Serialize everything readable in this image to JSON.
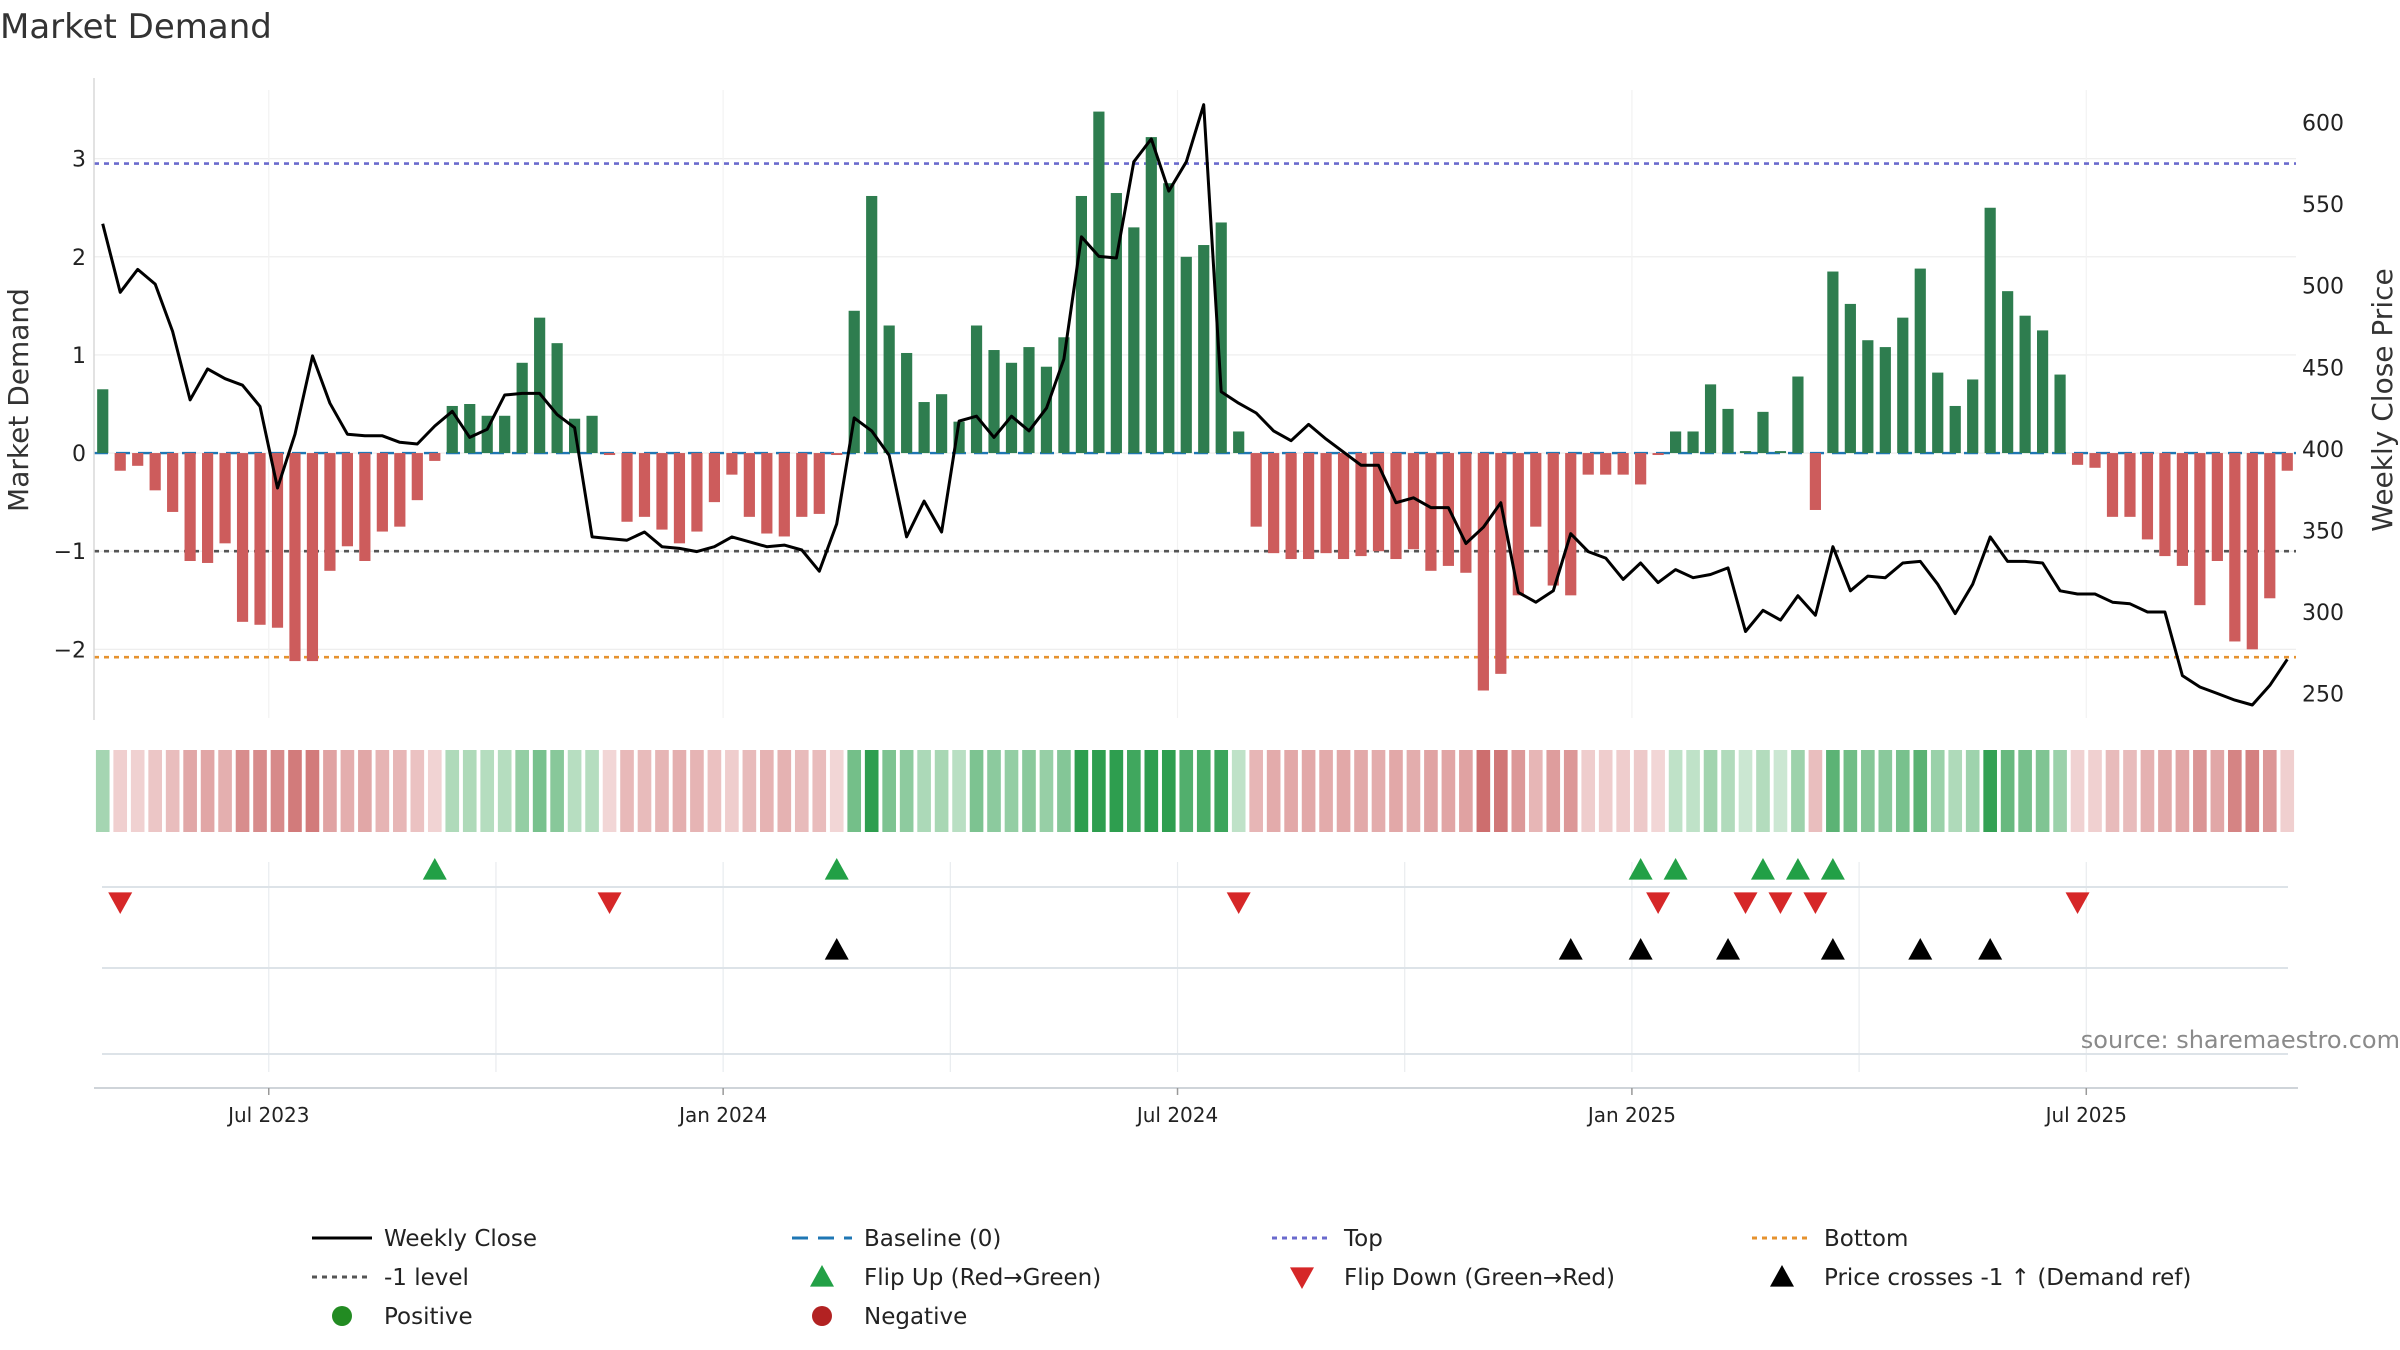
{
  "chart_data": {
    "type": "bar+line",
    "title": "Market Demand",
    "ylabel_left": "Market Demand",
    "ylabel_right": "Weekly Close Price",
    "ylim_left": [
      -2.7,
      3.7
    ],
    "ylim_right": [
      235,
      620
    ],
    "yticks_left": [
      -2,
      -1,
      0,
      1,
      2,
      3
    ],
    "ytick_labels_left": [
      "−2",
      "−1",
      "0",
      "1",
      "2",
      "3"
    ],
    "yticks_right": [
      250,
      300,
      350,
      400,
      450,
      500,
      550,
      600
    ],
    "xticks": [
      {
        "week": 10,
        "label": "Jul 2023"
      },
      {
        "week": 36,
        "label": "Jan 2024"
      },
      {
        "week": 62,
        "label": "Jul 2024"
      },
      {
        "week": 88,
        "label": "Jan 2025"
      },
      {
        "week": 114,
        "label": "Jul 2025"
      }
    ],
    "reference_lines": {
      "top": 2.95,
      "minus_one": -1.0,
      "bottom": -2.08,
      "baseline": 0
    },
    "demand": [
      0.65,
      -0.18,
      -0.13,
      -0.38,
      -0.6,
      -1.1,
      -1.12,
      -0.92,
      -1.72,
      -1.75,
      -1.78,
      -2.12,
      -2.12,
      -1.2,
      -0.95,
      -1.1,
      -0.8,
      -0.75,
      -0.48,
      -0.08,
      0.48,
      0.5,
      0.38,
      0.38,
      0.92,
      1.38,
      1.12,
      0.35,
      0.38,
      -0.02,
      -0.7,
      -0.65,
      -0.78,
      -0.92,
      -0.8,
      -0.5,
      -0.22,
      -0.65,
      -0.82,
      -0.85,
      -0.65,
      -0.62,
      -0.02,
      1.45,
      2.62,
      1.3,
      1.02,
      0.52,
      0.6,
      0.32,
      1.3,
      1.05,
      0.92,
      1.08,
      0.88,
      1.18,
      2.62,
      3.48,
      2.65,
      2.3,
      3.22,
      2.75,
      2.0,
      2.12,
      2.35,
      0.22,
      -0.75,
      -1.02,
      -1.08,
      -1.08,
      -1.02,
      -1.08,
      -1.05,
      -1.0,
      -1.08,
      -0.98,
      -1.2,
      -1.15,
      -1.22,
      -2.42,
      -2.25,
      -1.45,
      -0.75,
      -1.35,
      -1.45,
      -0.22,
      -0.22,
      -0.22,
      -0.32,
      -0.02,
      0.22,
      0.22,
      0.7,
      0.45,
      0.02,
      0.42,
      0.02,
      0.78,
      -0.58,
      1.85,
      1.52,
      1.15,
      1.08,
      1.38,
      1.88,
      0.82,
      0.48,
      0.75,
      2.5,
      1.65,
      1.4,
      1.25,
      0.8,
      -0.12,
      -0.15,
      -0.65,
      -0.65,
      -0.88,
      -1.05,
      -1.15,
      -1.55,
      -1.1,
      -1.92,
      -2.0,
      -1.48,
      -0.18
    ],
    "weekly_close": [
      538,
      496,
      510,
      501,
      472,
      430,
      449,
      443,
      439,
      426,
      376,
      409,
      457,
      428,
      409,
      408,
      408,
      404,
      403,
      414,
      423,
      407,
      412,
      433,
      434,
      434,
      421,
      413,
      346,
      345,
      344,
      349,
      340,
      339,
      337,
      340,
      346,
      343,
      340,
      341,
      338,
      325,
      354,
      419,
      411,
      396,
      346,
      368,
      349,
      417,
      420,
      407,
      420,
      411,
      425,
      455,
      530,
      518,
      517,
      576,
      590,
      558,
      576,
      611,
      435,
      428,
      422,
      411,
      405,
      415,
      406,
      398,
      390,
      390,
      367,
      370,
      364,
      364,
      342,
      352,
      367,
      312,
      306,
      313,
      348,
      337,
      333,
      320,
      330,
      318,
      326,
      321,
      323,
      327,
      288,
      301,
      295,
      310,
      298,
      340,
      313,
      322,
      321,
      330,
      331,
      317,
      299,
      317,
      346,
      331,
      331,
      330,
      313,
      311,
      311,
      306,
      305,
      300,
      300,
      261,
      254,
      250,
      246,
      243,
      255,
      271
    ],
    "flip_up_weeks": [
      19,
      42,
      88,
      90,
      95,
      97,
      99
    ],
    "flip_down_weeks": [
      1,
      29,
      65,
      89,
      94,
      96,
      98,
      113
    ],
    "price_cross_weeks": [
      42,
      84,
      88,
      93,
      99,
      104,
      108
    ],
    "colors": {
      "positive_bar": "#2e7d4f",
      "negative_bar": "#cd5c5c",
      "line": "#000000",
      "baseline": "#1f77b4",
      "top": "#6a6acd",
      "minus_one": "#555555",
      "bottom": "#e6922e",
      "flip_up": "#22a046",
      "flip_down": "#d62728",
      "price_cross": "#000000",
      "positive_dot": "#228b22",
      "negative_dot": "#b22222"
    },
    "legend": [
      {
        "label": "Weekly Close",
        "kind": "line-solid",
        "color": "#000000"
      },
      {
        "label": "Baseline (0)",
        "kind": "line-dash",
        "color": "#1f77b4"
      },
      {
        "label": "Top",
        "kind": "line-dot",
        "color": "#6a6acd"
      },
      {
        "label": "Bottom",
        "kind": "line-dot",
        "color": "#e6922e"
      },
      {
        "label": "-1 level",
        "kind": "line-dot",
        "color": "#555555"
      },
      {
        "label": "Flip Up (Red→Green)",
        "kind": "tri-up",
        "color": "#22a046"
      },
      {
        "label": "Flip Down (Green→Red)",
        "kind": "tri-down",
        "color": "#d62728"
      },
      {
        "label": "Price crosses -1 ↑ (Demand ref)",
        "kind": "tri-up",
        "color": "#000000"
      },
      {
        "label": "Positive",
        "kind": "dot",
        "color": "#228b22"
      },
      {
        "label": "Negative",
        "kind": "dot",
        "color": "#b22222"
      }
    ],
    "source": "source: sharemaestro.com"
  }
}
